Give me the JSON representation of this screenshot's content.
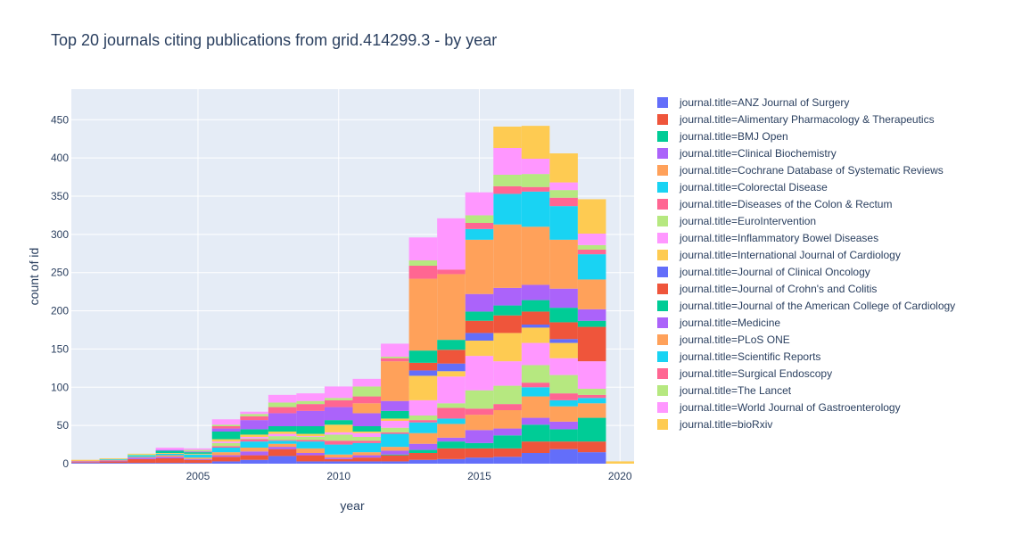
{
  "chart_data": {
    "type": "bar",
    "barmode": "stack",
    "title": "Top 20 journals citing publications from grid.414299.3 - by year",
    "xlabel": "year",
    "ylabel": "count of id",
    "xlim": [
      2000.5,
      2020.5
    ],
    "ylim": [
      0,
      490
    ],
    "x_ticks": [
      2005,
      2010,
      2015,
      2020
    ],
    "y_ticks": [
      0,
      50,
      100,
      150,
      200,
      250,
      300,
      350,
      400,
      450
    ],
    "grid": true,
    "legend_position": "right",
    "x": [
      2001,
      2002,
      2003,
      2004,
      2005,
      2006,
      2007,
      2008,
      2009,
      2010,
      2011,
      2012,
      2013,
      2014,
      2015,
      2016,
      2017,
      2018,
      2019,
      2020
    ],
    "series": [
      {
        "name": "journal.title=ANZ Journal of Surgery",
        "color": "#636efa",
        "values": [
          1,
          1,
          1,
          1,
          1,
          3,
          5,
          10,
          3,
          3,
          3,
          3,
          5,
          6,
          8,
          9,
          14,
          19,
          15,
          0
        ]
      },
      {
        "name": "journal.title=Alimentary Pharmacology & Therapeutics",
        "color": "#EF553B",
        "values": [
          1,
          2,
          5,
          6,
          4,
          6,
          6,
          9,
          8,
          3,
          5,
          8,
          9,
          14,
          12,
          11,
          15,
          10,
          14,
          0
        ]
      },
      {
        "name": "journal.title=BMJ Open",
        "color": "#00cc96",
        "values": [
          0,
          0,
          0,
          0,
          0,
          0,
          0,
          0,
          0,
          0,
          0,
          1,
          4,
          9,
          7,
          17,
          22,
          16,
          31,
          0
        ]
      },
      {
        "name": "journal.title=Clinical Biochemistry",
        "color": "#ab63fa",
        "values": [
          1,
          1,
          2,
          2,
          1,
          2,
          5,
          3,
          3,
          2,
          3,
          5,
          8,
          5,
          17,
          9,
          9,
          10,
          0,
          0
        ]
      },
      {
        "name": "journal.title=Cochrane Database of Systematic Reviews",
        "color": "#FFA15A",
        "values": [
          1,
          1,
          1,
          2,
          2,
          4,
          5,
          4,
          6,
          4,
          4,
          5,
          14,
          18,
          20,
          24,
          28,
          20,
          19,
          0
        ]
      },
      {
        "name": "journal.title=Colorectal Disease",
        "color": "#19d3f3",
        "values": [
          0,
          1,
          2,
          2,
          4,
          6,
          8,
          4,
          9,
          13,
          12,
          17,
          14,
          7,
          0,
          0,
          12,
          8,
          7,
          0
        ]
      },
      {
        "name": "journal.title=Diseases of the Colon & Rectum",
        "color": "#FF6692",
        "values": [
          0,
          0,
          0,
          0,
          0,
          2,
          3,
          1,
          2,
          5,
          3,
          2,
          3,
          14,
          8,
          8,
          6,
          9,
          4,
          0
        ]
      },
      {
        "name": "journal.title=EuroIntervention",
        "color": "#B6E880",
        "values": [
          0,
          0,
          1,
          0,
          0,
          4,
          1,
          5,
          4,
          8,
          5,
          6,
          6,
          6,
          24,
          24,
          23,
          24,
          8,
          0
        ]
      },
      {
        "name": "journal.title=Inflammatory Bowel Diseases",
        "color": "#FF97FF",
        "values": [
          0,
          0,
          0,
          0,
          0,
          2,
          2,
          3,
          1,
          3,
          5,
          9,
          20,
          35,
          45,
          32,
          29,
          22,
          36,
          0
        ]
      },
      {
        "name": "journal.title=International Journal of Cardiology",
        "color": "#FECB52",
        "values": [
          1,
          1,
          1,
          1,
          1,
          3,
          3,
          3,
          3,
          10,
          2,
          3,
          32,
          7,
          20,
          37,
          20,
          20,
          0,
          0
        ]
      },
      {
        "name": "journal.title=Journal of Clinical Oncology",
        "color": "#636efa",
        "values": [
          0,
          0,
          0,
          0,
          0,
          0,
          0,
          0,
          0,
          0,
          0,
          0,
          7,
          10,
          10,
          0,
          4,
          5,
          0,
          0
        ]
      },
      {
        "name": "journal.title=Journal of Crohn's and Colitis",
        "color": "#EF553B",
        "values": [
          0,
          0,
          0,
          0,
          0,
          0,
          0,
          0,
          0,
          0,
          0,
          0,
          10,
          18,
          16,
          23,
          17,
          22,
          45,
          0
        ]
      },
      {
        "name": "journal.title=Journal of the American College of Cardiology",
        "color": "#00cc96",
        "values": [
          0,
          0,
          0,
          3,
          2,
          10,
          7,
          7,
          10,
          6,
          7,
          10,
          16,
          13,
          12,
          13,
          15,
          19,
          8,
          0
        ]
      },
      {
        "name": "journal.title=Medicine",
        "color": "#ab63fa",
        "values": [
          0,
          0,
          0,
          1,
          1,
          4,
          12,
          17,
          20,
          17,
          17,
          13,
          0,
          0,
          23,
          23,
          20,
          25,
          15,
          0
        ]
      },
      {
        "name": "journal.title=PLoS ONE",
        "color": "#FFA15A",
        "values": [
          0,
          0,
          0,
          0,
          0,
          0,
          0,
          0,
          0,
          0,
          13,
          52,
          94,
          86,
          71,
          83,
          76,
          64,
          39,
          0
        ]
      },
      {
        "name": "journal.title=Scientific Reports",
        "color": "#19d3f3",
        "values": [
          0,
          0,
          0,
          0,
          0,
          0,
          0,
          0,
          0,
          0,
          0,
          0,
          0,
          0,
          14,
          40,
          46,
          44,
          33,
          0
        ]
      },
      {
        "name": "journal.title=Surgical Endoscopy",
        "color": "#FF6692",
        "values": [
          0,
          0,
          0,
          0,
          0,
          3,
          5,
          8,
          9,
          9,
          9,
          4,
          17,
          6,
          8,
          10,
          6,
          11,
          6,
          0
        ]
      },
      {
        "name": "journal.title=The Lancet",
        "color": "#B6E880",
        "values": [
          0,
          0,
          0,
          0,
          2,
          2,
          3,
          6,
          4,
          3,
          13,
          2,
          7,
          0,
          10,
          15,
          17,
          10,
          6,
          0
        ]
      },
      {
        "name": "journal.title=World Journal of Gastroenterology",
        "color": "#FF97FF",
        "values": [
          0,
          0,
          0,
          3,
          2,
          7,
          3,
          10,
          10,
          15,
          10,
          17,
          30,
          67,
          30,
          35,
          20,
          10,
          15,
          0
        ]
      },
      {
        "name": "journal.title=bioRxiv",
        "color": "#FECB52",
        "values": [
          0,
          0,
          0,
          0,
          0,
          0,
          0,
          0,
          0,
          0,
          0,
          0,
          0,
          0,
          0,
          28,
          43,
          38,
          45,
          3
        ]
      }
    ]
  }
}
